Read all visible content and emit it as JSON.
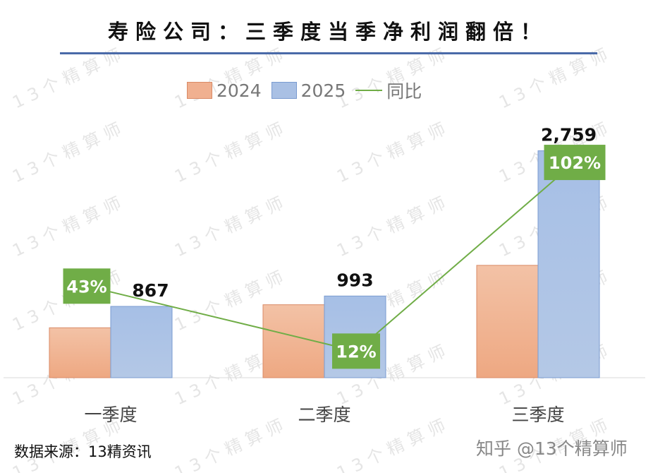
{
  "title": "寿险公司：三季度当季净利润翻倍！",
  "watermark": "13个精算师",
  "source": "数据来源：13精资讯",
  "attribution": "知乎 @13个精算师",
  "chart_data": {
    "type": "bar",
    "title": "寿险公司：三季度当季净利润翻倍！",
    "categories": [
      "一季度",
      "二季度",
      "三季度"
    ],
    "series": [
      {
        "name": "2024",
        "type": "bar",
        "color": "#f0b090",
        "values": [
          607,
          887,
          1366
        ],
        "labels_shown": false
      },
      {
        "name": "2025",
        "type": "bar",
        "color": "#a9c0e4",
        "values": [
          867,
          993,
          2759
        ],
        "labels": [
          "867",
          "993",
          "2,759"
        ]
      },
      {
        "name": "同比",
        "type": "line",
        "axis": "secondary",
        "color": "#70ad47",
        "values": [
          43,
          12,
          102
        ],
        "labels": [
          "43%",
          "12%",
          "102%"
        ]
      }
    ],
    "legend": "top",
    "grid": false
  }
}
